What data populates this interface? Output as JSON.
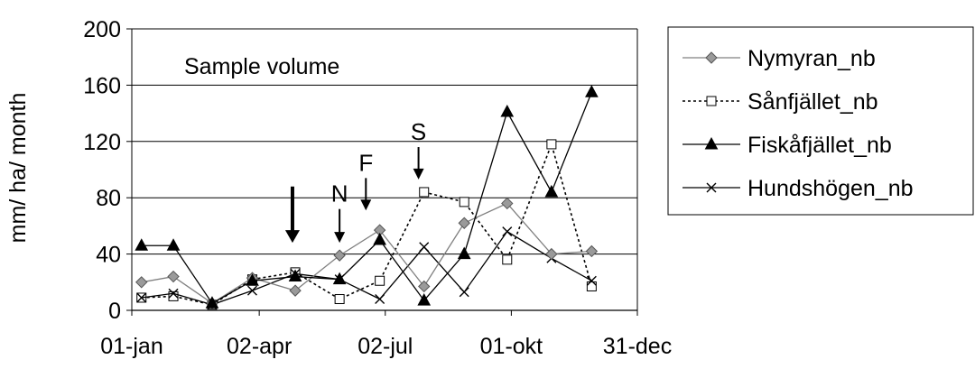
{
  "chart_data": {
    "type": "line",
    "title": "Sample volume",
    "ylabel": "mm/ ha/ month",
    "xlabel": "",
    "ylim": [
      0,
      200
    ],
    "yticks": [
      0,
      40,
      80,
      120,
      160,
      200
    ],
    "xlim": [
      "2004-01-01",
      "2004-12-31"
    ],
    "xticks": [
      {
        "date": "2004-01-01",
        "label": "01-jan"
      },
      {
        "date": "2004-04-02",
        "label": "02-apr"
      },
      {
        "date": "2004-07-02",
        "label": "02-jul"
      },
      {
        "date": "2004-10-01",
        "label": "01-okt"
      },
      {
        "date": "2004-12-31",
        "label": "31-dec"
      }
    ],
    "grid": "horizontal",
    "legend_position": "right",
    "series": [
      {
        "name": "Nymyran_nb",
        "marker": "diamond",
        "line_style": "solid",
        "color": "#808080",
        "points": [
          {
            "date": "2004-01-08",
            "value": 20
          },
          {
            "date": "2004-01-31",
            "value": 24
          },
          {
            "date": "2004-02-28",
            "value": 5
          },
          {
            "date": "2004-03-28",
            "value": 23
          },
          {
            "date": "2004-04-28",
            "value": 14
          },
          {
            "date": "2004-05-30",
            "value": 39
          },
          {
            "date": "2004-06-28",
            "value": 57
          },
          {
            "date": "2004-07-30",
            "value": 17
          },
          {
            "date": "2004-08-28",
            "value": 62
          },
          {
            "date": "2004-09-28",
            "value": 76
          },
          {
            "date": "2004-10-30",
            "value": 40
          },
          {
            "date": "2004-11-28",
            "value": 42
          }
        ]
      },
      {
        "name": "Sånfjället_nb",
        "marker": "square-open",
        "line_style": "dotted",
        "color": "#000000",
        "points": [
          {
            "date": "2004-01-08",
            "value": 9
          },
          {
            "date": "2004-01-31",
            "value": 10
          },
          {
            "date": "2004-02-28",
            "value": 4
          },
          {
            "date": "2004-03-28",
            "value": 22
          },
          {
            "date": "2004-04-28",
            "value": 27
          },
          {
            "date": "2004-05-30",
            "value": 8
          },
          {
            "date": "2004-06-28",
            "value": 21
          },
          {
            "date": "2004-07-30",
            "value": 84
          },
          {
            "date": "2004-08-28",
            "value": 77
          },
          {
            "date": "2004-09-28",
            "value": 36
          },
          {
            "date": "2004-10-30",
            "value": 118
          },
          {
            "date": "2004-11-28",
            "value": 17
          }
        ]
      },
      {
        "name": "Fiskåfjället_nb",
        "marker": "triangle",
        "line_style": "solid",
        "color": "#000000",
        "points": [
          {
            "date": "2004-01-08",
            "value": 46
          },
          {
            "date": "2004-01-31",
            "value": 46
          },
          {
            "date": "2004-02-28",
            "value": 5
          },
          {
            "date": "2004-03-28",
            "value": 21
          },
          {
            "date": "2004-04-28",
            "value": 24
          },
          {
            "date": "2004-05-30",
            "value": 22
          },
          {
            "date": "2004-06-28",
            "value": 50
          },
          {
            "date": "2004-07-30",
            "value": 7
          },
          {
            "date": "2004-08-28",
            "value": 40
          },
          {
            "date": "2004-09-28",
            "value": 141
          },
          {
            "date": "2004-10-30",
            "value": 84
          },
          {
            "date": "2004-11-28",
            "value": 155
          }
        ]
      },
      {
        "name": "Hundshögen_nb",
        "marker": "x",
        "line_style": "solid",
        "color": "#000000",
        "points": [
          {
            "date": "2004-01-08",
            "value": 9
          },
          {
            "date": "2004-01-31",
            "value": 12
          },
          {
            "date": "2004-02-28",
            "value": 4
          },
          {
            "date": "2004-03-28",
            "value": 14
          },
          {
            "date": "2004-04-28",
            "value": 26
          },
          {
            "date": "2004-05-30",
            "value": 22
          },
          {
            "date": "2004-06-28",
            "value": 8
          },
          {
            "date": "2004-07-30",
            "value": 45
          },
          {
            "date": "2004-08-28",
            "value": 13
          },
          {
            "date": "2004-09-28",
            "value": 56
          },
          {
            "date": "2004-10-30",
            "value": 37
          },
          {
            "date": "2004-11-28",
            "value": 21
          }
        ]
      }
    ],
    "annotations": [
      {
        "label": "",
        "date": "2004-04-26",
        "value_top": 88,
        "value_bottom": 48,
        "weight": "bold"
      },
      {
        "label": "N",
        "date": "2004-05-30",
        "value_top": 72,
        "value_bottom": 48,
        "weight": "normal"
      },
      {
        "label": "F",
        "date": "2004-06-18",
        "value_top": 94,
        "value_bottom": 71,
        "weight": "normal"
      },
      {
        "label": "S",
        "date": "2004-07-26",
        "value_top": 116,
        "value_bottom": 93,
        "weight": "normal"
      }
    ]
  }
}
